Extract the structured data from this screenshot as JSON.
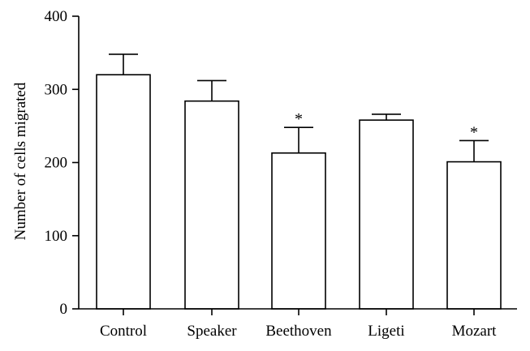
{
  "chart_data": {
    "type": "bar",
    "title": "",
    "xlabel": "",
    "ylabel": "Number of cells migrated",
    "ylim": [
      0,
      400
    ],
    "yticks": [
      0,
      100,
      200,
      300,
      400
    ],
    "categories": [
      "Control",
      "Speaker",
      "Beethoven",
      "Ligeti",
      "Mozart"
    ],
    "values": [
      320,
      284,
      213,
      258,
      201
    ],
    "error_upper": [
      348,
      312,
      248,
      266,
      230
    ],
    "annotations": [
      "",
      "",
      "*",
      "",
      "*"
    ],
    "grid": false,
    "legend": "none"
  },
  "colors": {
    "bar_fill": "#ffffff",
    "bar_stroke": "#000000",
    "text": "#000000"
  }
}
